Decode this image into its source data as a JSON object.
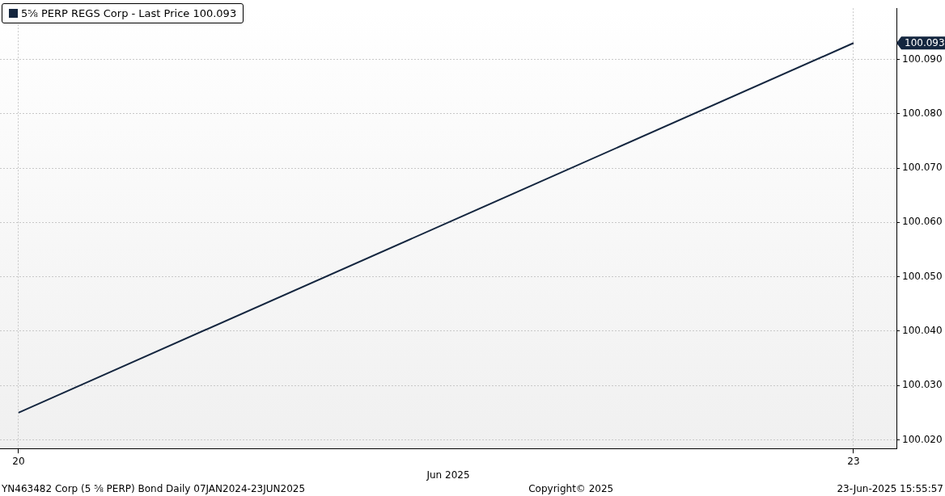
{
  "chart_data": {
    "type": "line",
    "xlabel": "Jun 2025",
    "x": [
      "2025-06-20",
      "2025-06-23"
    ],
    "series": [
      {
        "name": "5⅝ PERP REGS Corp - Last Price 100.093",
        "color": "#14263f",
        "values": [
          100.025,
          100.093
        ]
      }
    ],
    "xlim": [
      "2025-06-19T22:24",
      "2025-06-23T03:42"
    ],
    "xticks": [
      {
        "value": "2025-06-20",
        "label": "20"
      },
      {
        "value": "2025-06-23",
        "label": "23"
      }
    ],
    "ylim": [
      100.0184,
      100.0994
    ],
    "yticks": [
      {
        "value": 100.02,
        "label": "100.020"
      },
      {
        "value": 100.03,
        "label": "100.030"
      },
      {
        "value": 100.04,
        "label": "100.040"
      },
      {
        "value": 100.05,
        "label": "100.050"
      },
      {
        "value": 100.06,
        "label": "100.060"
      },
      {
        "value": 100.07,
        "label": "100.070"
      },
      {
        "value": 100.08,
        "label": "100.080"
      },
      {
        "value": 100.09,
        "label": "100.090"
      }
    ],
    "grid": true,
    "legend": "top left",
    "marker": "none",
    "line_style": "solid",
    "annotations": [
      "100.093",
      "YN463482 Corp (5 ⅝ PERP) Bond  Daily 07JAN2024-23JUN2025",
      "Copyright© 2025",
      "23-Jun-2025 15:55:57"
    ]
  }
}
